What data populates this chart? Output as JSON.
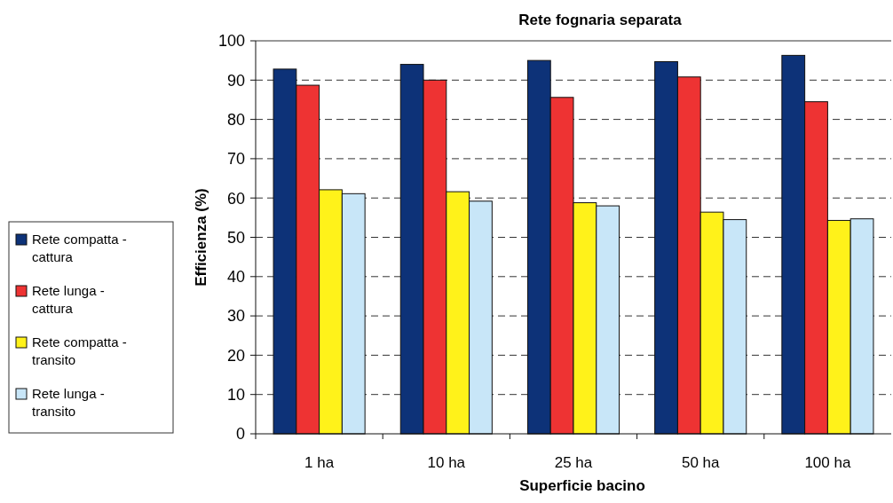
{
  "chart_data": {
    "type": "bar",
    "title": "Rete fognaria separata",
    "xlabel": "Superficie bacino",
    "ylabel": "Efficienza (%)",
    "categories": [
      "1 ha",
      "10 ha",
      "25 ha",
      "50 ha",
      "100 ha"
    ],
    "series": [
      {
        "name": "Rete compatta - cattura",
        "color": "#0d3278",
        "values": [
          92.8,
          94.0,
          95.0,
          94.7,
          96.3
        ]
      },
      {
        "name": "Rete lunga - cattura",
        "color": "#ee3333",
        "values": [
          88.7,
          90.0,
          85.6,
          90.8,
          84.5
        ]
      },
      {
        "name": "Rete compatta - transito",
        "color": "#fff21a",
        "values": [
          62.1,
          61.6,
          58.8,
          56.4,
          54.3
        ]
      },
      {
        "name": "Rete lunga - transito",
        "color": "#c8e6f8",
        "values": [
          61.1,
          59.2,
          58.0,
          54.5,
          54.7
        ]
      }
    ],
    "ylim": [
      0,
      100
    ],
    "yticks": [
      0,
      10,
      20,
      30,
      40,
      50,
      60,
      70,
      80,
      90,
      100
    ],
    "grid": "y",
    "line_style": "dashed",
    "legend": "left"
  }
}
